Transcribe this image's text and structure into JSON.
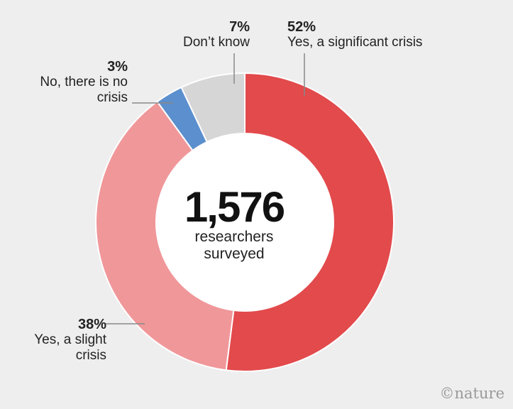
{
  "chart_data": {
    "type": "pie",
    "categories": [
      "Yes, a significant crisis",
      "Yes, a slight crisis",
      "No, there is no crisis",
      "Don’t know"
    ],
    "values": [
      52,
      38,
      3,
      7
    ],
    "value_labels": [
      "52%",
      "38%",
      "3%",
      "7%"
    ],
    "colors": [
      "#e24a4c",
      "#f0979a",
      "#5b8fcd",
      "#d6d6d6"
    ],
    "center_number": "1,576",
    "center_text_line1": "researchers",
    "center_text_line2": "surveyed"
  },
  "labels": {
    "significant_pct": "52%",
    "significant_line1": "Yes, a significant crisis",
    "dontknow_pct": "7%",
    "dontknow_line1": "Don’t know",
    "no_pct": "3%",
    "no_line1": "No, there is no",
    "no_line2": "crisis",
    "slight_pct": "38%",
    "slight_line1": "Yes, a slight",
    "slight_line2": "crisis"
  },
  "credit": "©nature"
}
